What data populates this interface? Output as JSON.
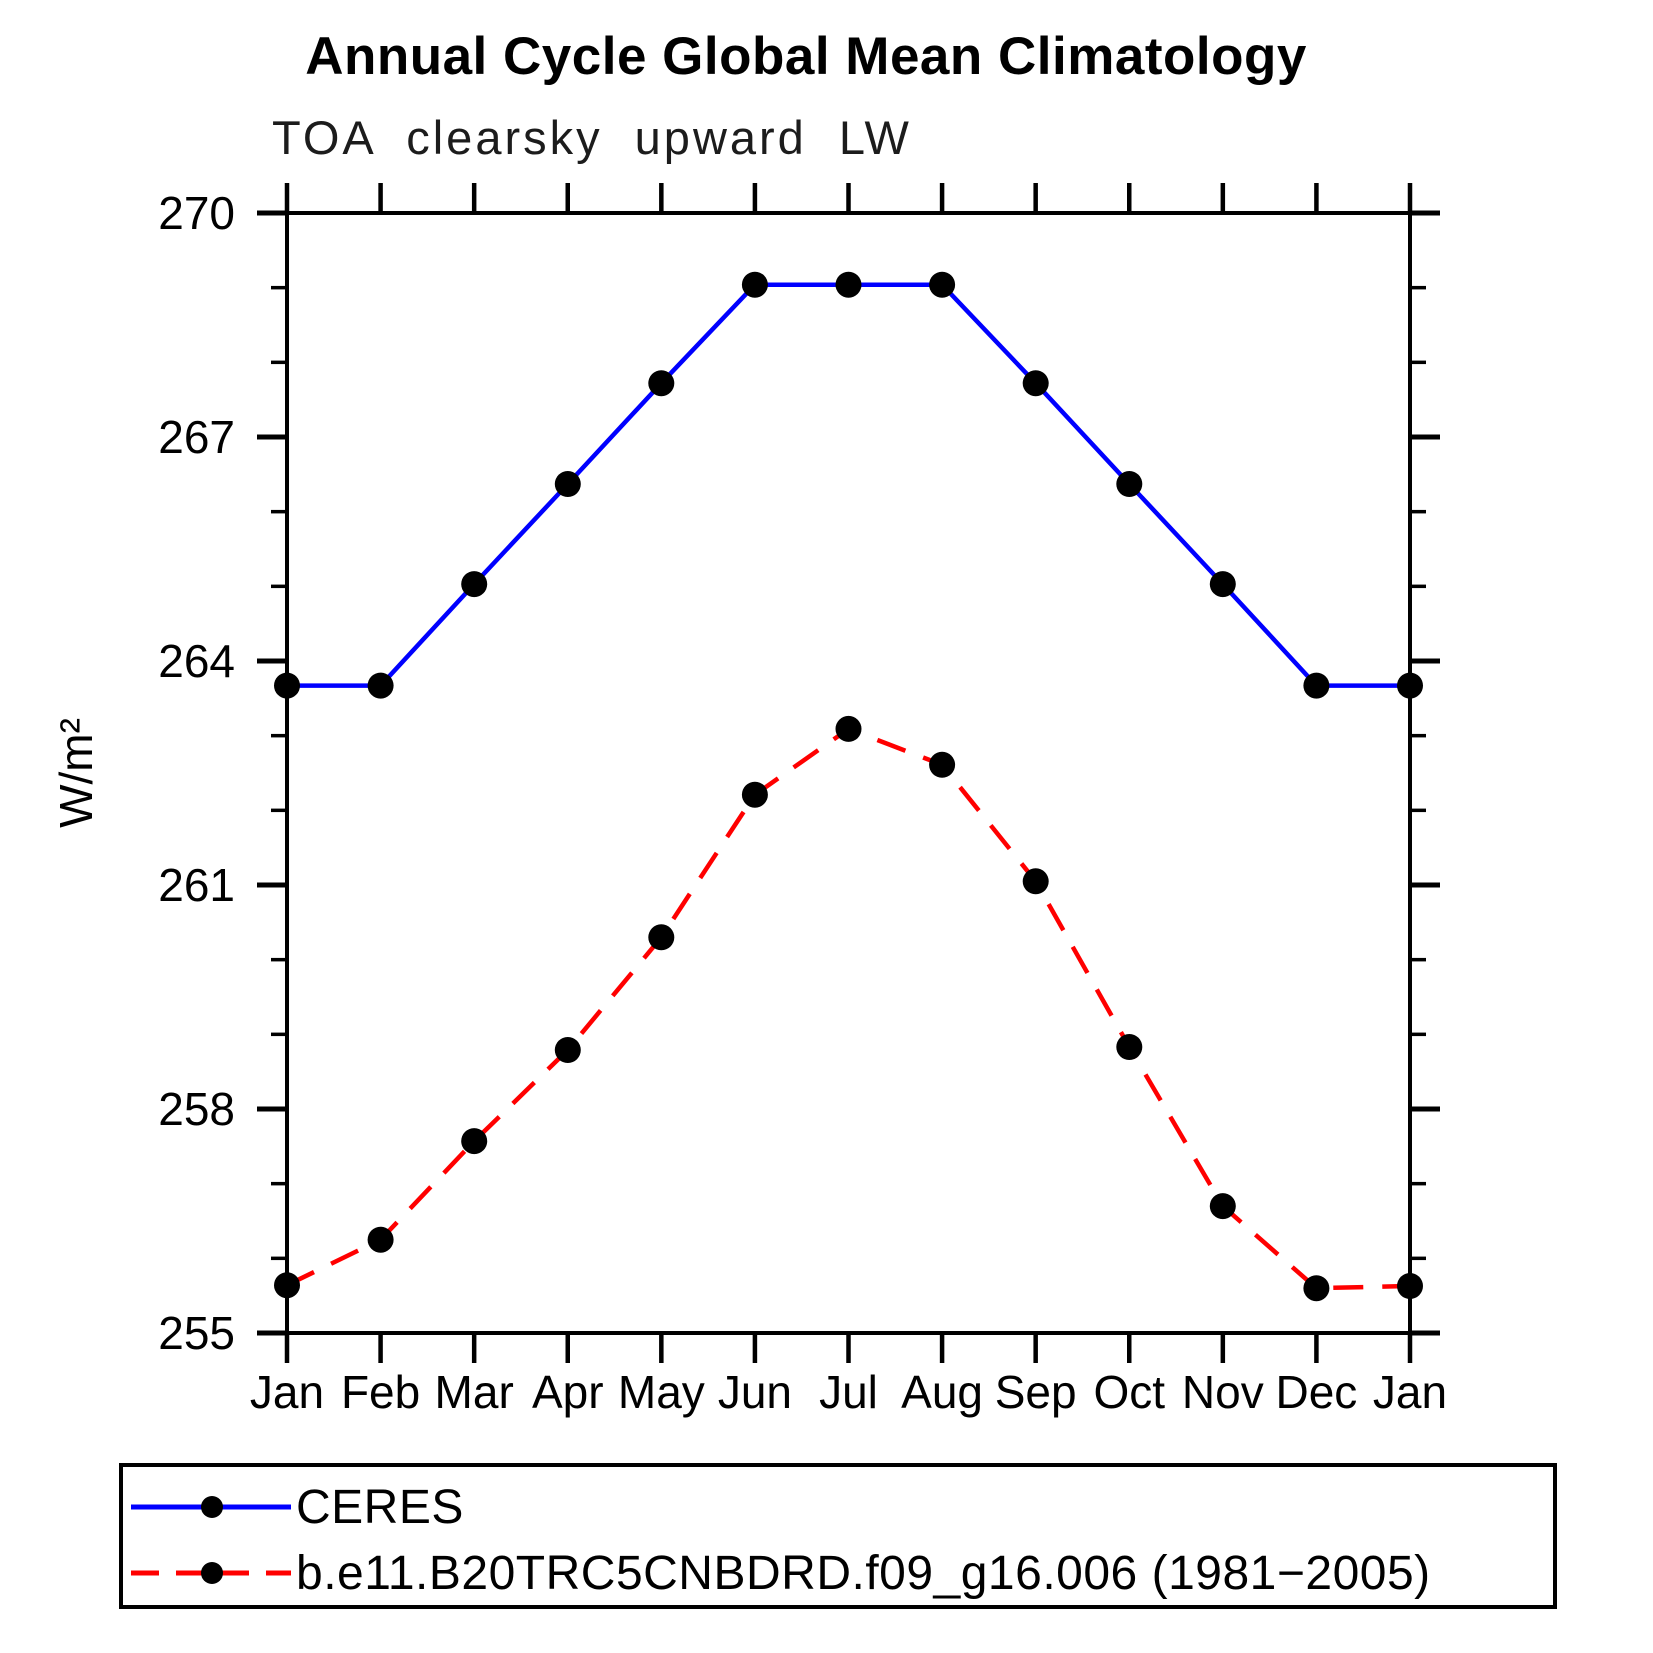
{
  "chart_data": {
    "type": "line",
    "title": "Annual Cycle Global Mean Climatology",
    "subtitle": "TOA clearsky upward LW",
    "ylabel": "W/m²",
    "x": [
      "Jan",
      "Feb",
      "Mar",
      "Apr",
      "May",
      "Jun",
      "Jul",
      "Aug",
      "Sep",
      "Oct",
      "Nov",
      "Dec",
      "Jan"
    ],
    "ylim": [
      255,
      270
    ],
    "yticks_major": [
      255,
      258,
      261,
      264,
      267,
      270
    ],
    "ytick_minor_step": 1,
    "grid": false,
    "legend_position": "bottom",
    "axis_color": "#000000",
    "marker_color": "#000000",
    "series": [
      {
        "name": "CERES",
        "color": "#0000ff",
        "style": "solid",
        "marker": "circle",
        "values": [
          263.67,
          263.67,
          265.03,
          266.37,
          267.72,
          269.04,
          269.04,
          269.04,
          267.72,
          266.37,
          265.03,
          263.67,
          263.67
        ]
      },
      {
        "name": "b.e11.B20TRC5CNBDRD.f09_g16.006 (1981−2005)",
        "color": "#ff0000",
        "style": "dashed",
        "marker": "circle",
        "values": [
          255.64,
          256.25,
          257.57,
          258.79,
          260.3,
          262.21,
          263.09,
          262.61,
          261.05,
          258.83,
          256.7,
          255.6,
          255.63
        ]
      }
    ]
  }
}
